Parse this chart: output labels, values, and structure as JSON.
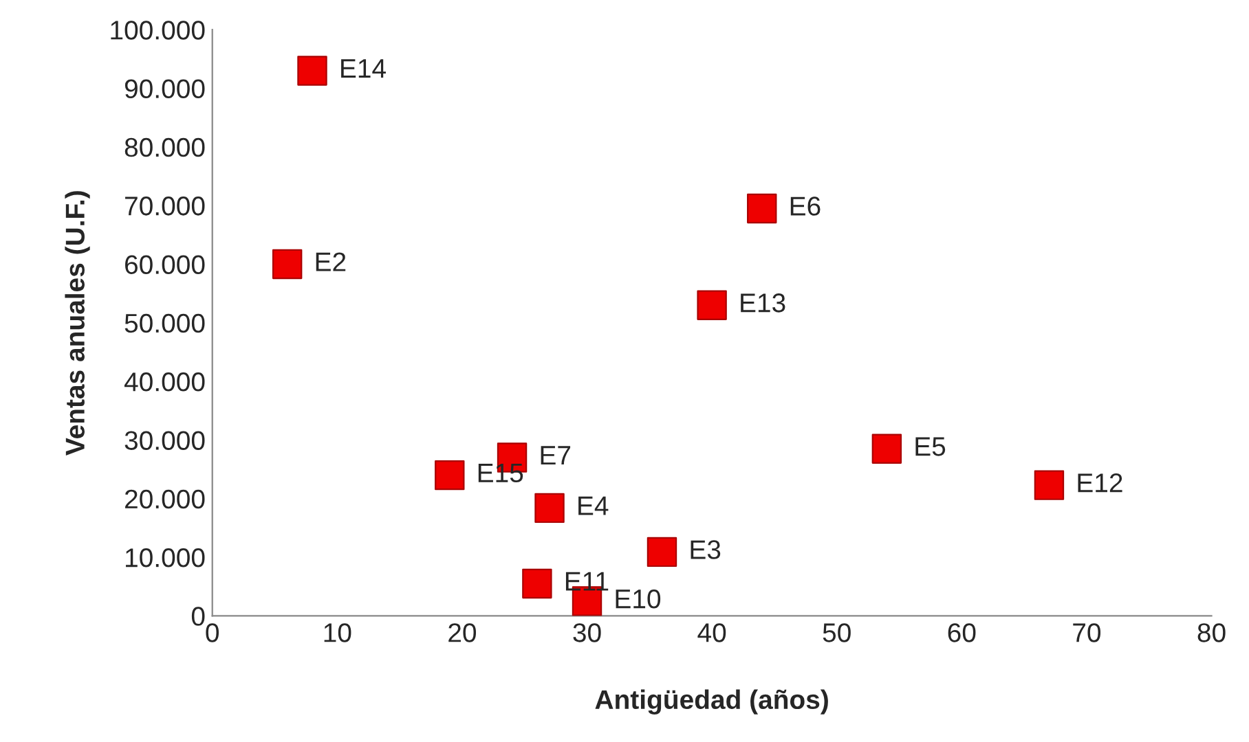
{
  "chart_data": {
    "type": "scatter",
    "xlabel": "Antigüedad (años)",
    "ylabel": "Ventas anuales (U.F.)",
    "x": [
      8,
      6,
      44,
      40,
      54,
      67,
      24,
      19,
      27,
      36,
      26,
      30
    ],
    "series": [
      {
        "color": "#ee0000",
        "values": [
          93000,
          60000,
          69500,
          53000,
          28500,
          22300,
          27000,
          24000,
          18400,
          10900,
          5500,
          2500
        ]
      }
    ],
    "marker": "square",
    "annotations": [
      {
        "text": "E14",
        "x": 8,
        "y": 93000
      },
      {
        "text": "E2",
        "x": 6,
        "y": 60000
      },
      {
        "text": "E6",
        "x": 44,
        "y": 69500
      },
      {
        "text": "E13",
        "x": 40,
        "y": 53000
      },
      {
        "text": "E5",
        "x": 54,
        "y": 28500
      },
      {
        "text": "E12",
        "x": 67,
        "y": 22300
      },
      {
        "text": "E7",
        "x": 24,
        "y": 27000
      },
      {
        "text": "E15",
        "x": 19,
        "y": 24000
      },
      {
        "text": "E4",
        "x": 27,
        "y": 18400
      },
      {
        "text": "E3",
        "x": 36,
        "y": 10900
      },
      {
        "text": "E11",
        "x": 26,
        "y": 5500
      },
      {
        "text": "E10",
        "x": 30,
        "y": 2500
      }
    ],
    "xlim": [
      0,
      80
    ],
    "xticks": [
      0,
      10,
      20,
      30,
      40,
      50,
      60,
      70,
      80
    ],
    "ylim": [
      0,
      100000
    ],
    "yticks": [
      {
        "value": 0,
        "label": "0"
      },
      {
        "value": 10000,
        "label": "10.000"
      },
      {
        "value": 20000,
        "label": "20.000"
      },
      {
        "value": 30000,
        "label": "30.000"
      },
      {
        "value": 40000,
        "label": "40.000"
      },
      {
        "value": 50000,
        "label": "50.000"
      },
      {
        "value": 60000,
        "label": "60.000"
      },
      {
        "value": 70000,
        "label": "70.000"
      },
      {
        "value": 80000,
        "label": "80.000"
      },
      {
        "value": 90000,
        "label": "90.000"
      },
      {
        "value": 100000,
        "label": "100.000"
      }
    ],
    "grid": false,
    "legend": false
  }
}
